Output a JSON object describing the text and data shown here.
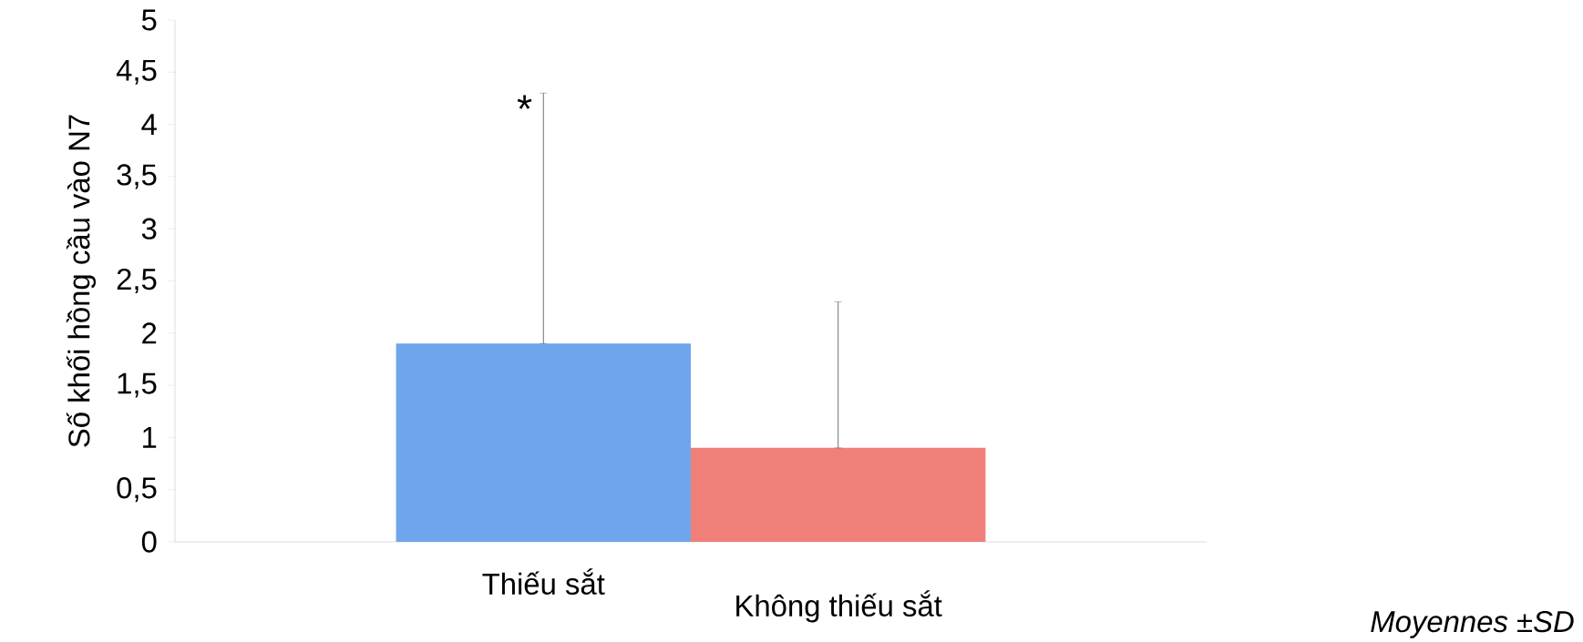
{
  "chart_data": {
    "type": "bar",
    "ylabel": "Số khối hồng cầu vào N7",
    "categories": [
      "Thiếu sắt",
      "Không thiếu sắt"
    ],
    "values": [
      1.9,
      0.9
    ],
    "errors": [
      [
        1.9,
        4.3
      ],
      [
        0.9,
        2.3
      ]
    ],
    "colors": [
      "#6fa5ec",
      "#ef7f78"
    ],
    "ylim": [
      0,
      5
    ],
    "yticks": [
      {
        "value": 0,
        "label": "0"
      },
      {
        "value": 0.5,
        "label": "0,5"
      },
      {
        "value": 1,
        "label": "1"
      },
      {
        "value": 1.5,
        "label": "1,5"
      },
      {
        "value": 2,
        "label": "2"
      },
      {
        "value": 2.5,
        "label": "2,5"
      },
      {
        "value": 3,
        "label": "3"
      },
      {
        "value": 3.5,
        "label": "3,5"
      },
      {
        "value": 4,
        "label": "4"
      },
      {
        "value": 4.5,
        "label": "4,5"
      },
      {
        "value": 5,
        "label": "5"
      }
    ],
    "annotations": [
      {
        "text": "*",
        "x": "Thiếu sắt",
        "y": 4.3
      },
      "Moyennes ±SD"
    ],
    "grid": false
  }
}
